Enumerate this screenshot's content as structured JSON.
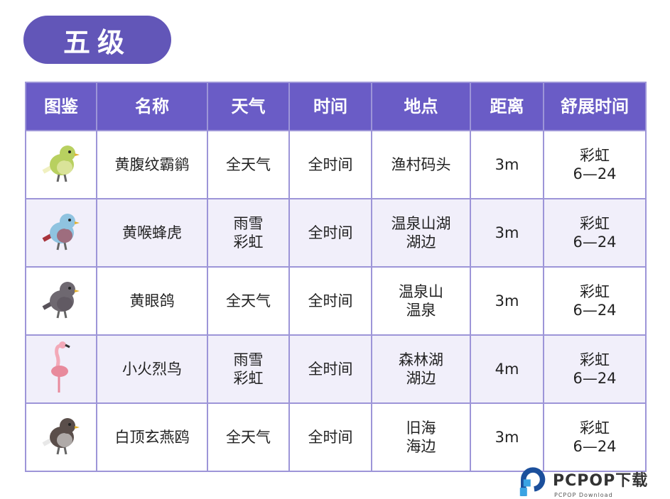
{
  "title": "五级",
  "headers": [
    "图鉴",
    "名称",
    "天气",
    "时间",
    "地点",
    "距离",
    "舒展时间"
  ],
  "rows": [
    {
      "bird_icon": "yellow-green-bird",
      "name": "黄腹纹霸鹟",
      "weather": [
        "全天气"
      ],
      "time": "全时间",
      "location": [
        "渔村码头"
      ],
      "distance": "3m",
      "stretch": [
        "彩虹",
        "6—24"
      ],
      "colors": [
        "#b8d060",
        "#f0f0c0"
      ]
    },
    {
      "bird_icon": "bee-eater-bird",
      "name": "黄喉蜂虎",
      "weather": [
        "雨雪",
        "彩虹"
      ],
      "time": "全时间",
      "location": [
        "温泉山湖",
        "湖边"
      ],
      "distance": "3m",
      "stretch": [
        "彩虹",
        "6—24"
      ],
      "colors": [
        "#8fc3e0",
        "#a8343c"
      ]
    },
    {
      "bird_icon": "pigeon-bird",
      "name": "黄眼鸽",
      "weather": [
        "全天气"
      ],
      "time": "全时间",
      "location": [
        "温泉山",
        "温泉"
      ],
      "distance": "3m",
      "stretch": [
        "彩虹",
        "6—24"
      ],
      "colors": [
        "#6e6870",
        "#58525a"
      ]
    },
    {
      "bird_icon": "flamingo-bird",
      "name": "小火烈鸟",
      "weather": [
        "雨雪",
        "彩虹"
      ],
      "time": "全时间",
      "location": [
        "森林湖",
        "湖边"
      ],
      "distance": "4m",
      "stretch": [
        "彩虹",
        "6—24"
      ],
      "colors": [
        "#f3a9b8",
        "#e88a9c"
      ]
    },
    {
      "bird_icon": "noddy-bird",
      "name": "白顶玄燕鸥",
      "weather": [
        "全天气"
      ],
      "time": "全时间",
      "location": [
        "旧海",
        "海边"
      ],
      "distance": "3m",
      "stretch": [
        "彩虹",
        "6—24"
      ],
      "colors": [
        "#5a4e4a",
        "#e8e8e8"
      ]
    }
  ],
  "watermark": {
    "text": "PCPOP下载",
    "sub": "PCPOP Download",
    "colors": [
      "#1b4f9c",
      "#3aa3e3"
    ]
  }
}
